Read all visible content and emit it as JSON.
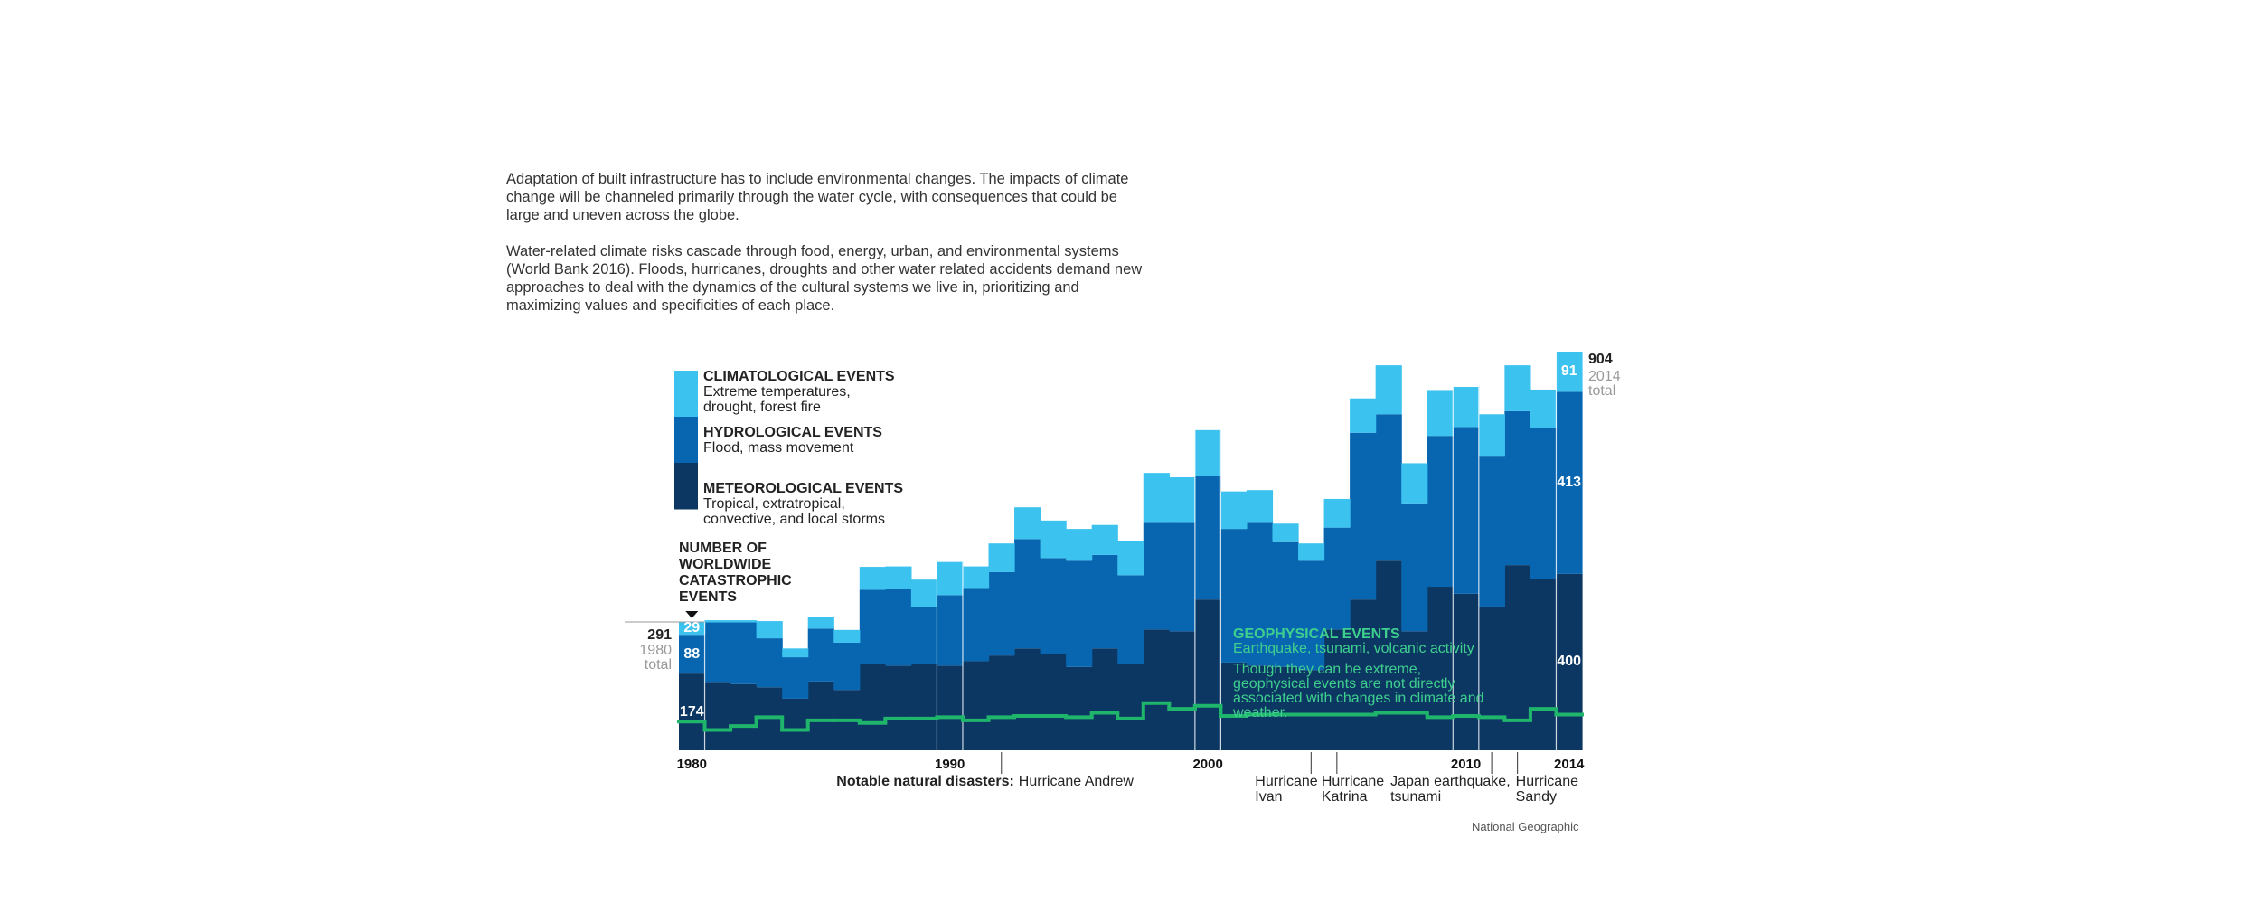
{
  "paragraphs": [
    "Adaptation of built infrastructure has to include environmental changes. The impacts of climate change will be channeled primarily through the water cycle, with consequences that could be large and uneven across the globe.",
    "Water-related climate risks cascade through food, energy, urban, and environmental systems (World Bank 2016). Floods, hurricanes, droughts and other water related accidents demand new approaches to deal with the dynamics of the cultural systems we live in, prioritizing and maximizing values and specificities of each place."
  ],
  "chart_data": {
    "type": "stacked_bar",
    "y_label": "NUMBER OF WORLDWIDE CATASTROPHIC EVENTS",
    "categories": [
      "1980",
      null,
      null,
      null,
      null,
      null,
      null,
      null,
      null,
      null,
      "1990",
      null,
      null,
      null,
      null,
      null,
      null,
      null,
      null,
      null,
      "2000",
      null,
      null,
      null,
      null,
      null,
      null,
      null,
      null,
      null,
      "2010",
      null,
      null,
      null,
      "2014"
    ],
    "series": [
      {
        "name": "METEOROLOGICAL EVENTS",
        "description": "Tropical, extratropical, convective, and local storms",
        "color": "#0c3763",
        "values": [
          174,
          155,
          150,
          143,
          117,
          156,
          137,
          195,
          192,
          195,
          192,
          202,
          215,
          231,
          218,
          189,
          231,
          195,
          274,
          270,
          342,
          199,
          192,
          189,
          182,
          274,
          342,
          430,
          270,
          371,
          355,
          326,
          420,
          388,
          400
        ]
      },
      {
        "name": "HYDROLOGICAL EVENTS",
        "description": "Flood, mass movement",
        "color": "#0866b0",
        "values": [
          88,
          135,
          140,
          111,
          94,
          120,
          107,
          169,
          173,
          130,
          160,
          166,
          189,
          248,
          218,
          241,
          212,
          202,
          244,
          248,
          280,
          303,
          326,
          283,
          248,
          231,
          378,
          332,
          290,
          342,
          378,
          342,
          349,
          342,
          413
        ]
      },
      {
        "name": "CLIMATOLOGICAL EVENTS",
        "description": "Extreme temperatures, drought, forest fire",
        "color": "#3bc2ef",
        "values": [
          29,
          5,
          5,
          39,
          20,
          26,
          29,
          52,
          52,
          62,
          75,
          49,
          65,
          72,
          85,
          72,
          68,
          78,
          111,
          101,
          104,
          85,
          72,
          42,
          39,
          65,
          78,
          111,
          91,
          104,
          91,
          94,
          104,
          88,
          91
        ]
      }
    ],
    "line_series": {
      "name": "GEOPHYSICAL EVENTS",
      "description": "Earthquake, tsunami, volcanic activity",
      "note": "Though they can be extreme, geophysical events are not directly associated with changes in climate and weather.",
      "color": "#1fb56b",
      "values": [
        65,
        46,
        55,
        75,
        46,
        68,
        68,
        62,
        72,
        72,
        75,
        68,
        75,
        78,
        78,
        75,
        85,
        72,
        107,
        94,
        101,
        78,
        81,
        81,
        81,
        81,
        81,
        85,
        85,
        75,
        78,
        75,
        68,
        94,
        81
      ]
    },
    "totals": [
      {
        "value": 291,
        "label": "1980 total"
      },
      {
        "value": 904,
        "label": "2014 total"
      }
    ],
    "events_label": "Notable natural disasters:",
    "events": [
      {
        "label": "Hurricane Andrew",
        "year": 1992
      },
      {
        "label": "Hurricane Ivan",
        "year": 2004
      },
      {
        "label": "Hurricane Katrina",
        "year": 2005
      },
      {
        "label": "Japan earthquake, tsunami",
        "year": 2011
      },
      {
        "label": "Hurricane Sandy",
        "year": 2012
      }
    ],
    "source": "National Geographic"
  }
}
